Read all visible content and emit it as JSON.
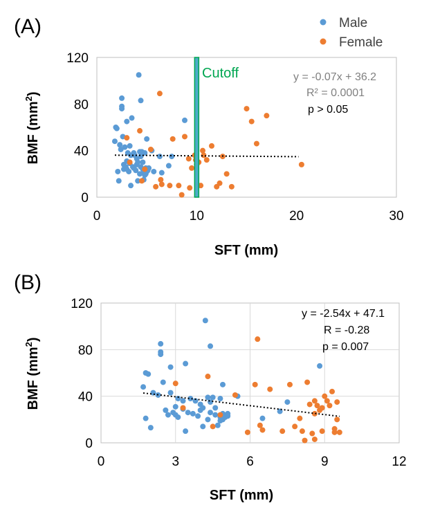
{
  "colors": {
    "male": "#5b9bd5",
    "female": "#ed7d31",
    "cutoff_fill": "#4bacc6",
    "cutoff_stroke": "#00a651",
    "cutoff_text": "#00a651",
    "grid": "#d9d9d9",
    "axis": "#bfbfbf",
    "trend": "#000000",
    "eq_gray": "#808080"
  },
  "legend": {
    "male": "Male",
    "female": "Female"
  },
  "chart_data": [
    {
      "panel": "(A)",
      "type": "scatter",
      "xlabel": "SFT (mm)",
      "ylabel": "BMF (mm",
      "ylabel_sup": "2",
      "ylabel_end": ")",
      "xlim": [
        0,
        30
      ],
      "ylim": [
        0,
        120
      ],
      "xticks": [
        0,
        10,
        20,
        30
      ],
      "yticks": [
        0,
        40,
        80,
        120
      ],
      "grid": false,
      "cutoff": {
        "x": 10,
        "label": "Cutoff"
      },
      "annotations": {
        "equation": "y = -0.07x + 36.2",
        "r_label": "R² = 0.0001",
        "p": "p > 0.05"
      },
      "trend": {
        "slope": -0.07,
        "intercept": 36.2,
        "x_range": [
          1.8,
          20.2
        ]
      },
      "series": [
        {
          "name": "Male",
          "points": [
            [
              1.8,
              48
            ],
            [
              1.9,
              60
            ],
            [
              2,
              59
            ],
            [
              2.1,
              22
            ],
            [
              2.2,
              14
            ],
            [
              2.3,
              45
            ],
            [
              2.4,
              41
            ],
            [
              2.5,
              85
            ],
            [
              2.5,
              78
            ],
            [
              2.5,
              76
            ],
            [
              2.6,
              52
            ],
            [
              2.7,
              28
            ],
            [
              2.7,
              24
            ],
            [
              2.8,
              43
            ],
            [
              2.9,
              26
            ],
            [
              3,
              31
            ],
            [
              3,
              24
            ],
            [
              3,
              65
            ],
            [
              3.1,
              38
            ],
            [
              3.2,
              22
            ],
            [
              3.3,
              44
            ],
            [
              3.3,
              29
            ],
            [
              3.4,
              36
            ],
            [
              3.4,
              10
            ],
            [
              3.5,
              68
            ],
            [
              3.6,
              26
            ],
            [
              3.7,
              38
            ],
            [
              3.7,
              25
            ],
            [
              3.8,
              36
            ],
            [
              3.9,
              23
            ],
            [
              4,
              33
            ],
            [
              4,
              28
            ],
            [
              4.1,
              30
            ],
            [
              4.1,
              14
            ],
            [
              4.2,
              105
            ],
            [
              4.3,
              39
            ],
            [
              4.3,
              20
            ],
            [
              4.4,
              35
            ],
            [
              4.4,
              26
            ],
            [
              4.4,
              83
            ],
            [
              4.5,
              39
            ],
            [
              4.6,
              30
            ],
            [
              4.6,
              24
            ],
            [
              4.7,
              15
            ],
            [
              4.7,
              22
            ],
            [
              4.8,
              19
            ],
            [
              4.8,
              38
            ],
            [
              4.9,
              20
            ],
            [
              4.9,
              25
            ],
            [
              5,
              22
            ],
            [
              5,
              50
            ],
            [
              5.1,
              23
            ],
            [
              5.2,
              25
            ],
            [
              5.5,
              40
            ],
            [
              5.7,
              22
            ],
            [
              6.3,
              35
            ],
            [
              6.5,
              21
            ],
            [
              7.2,
              27
            ],
            [
              7.5,
              35
            ],
            [
              8.8,
              66
            ]
          ]
        },
        {
          "name": "Female",
          "points": [
            [
              3,
              51
            ],
            [
              3.3,
              30
            ],
            [
              4.3,
              57
            ],
            [
              4.5,
              14
            ],
            [
              4.8,
              24
            ],
            [
              5.4,
              41
            ],
            [
              5.9,
              9
            ],
            [
              6.3,
              89
            ],
            [
              6.4,
              15
            ],
            [
              6.5,
              11
            ],
            [
              7.3,
              10
            ],
            [
              7.6,
              50
            ],
            [
              8.2,
              10
            ],
            [
              8.5,
              2
            ],
            [
              8.8,
              52
            ],
            [
              9.2,
              33
            ],
            [
              9.3,
              8
            ],
            [
              9.5,
              25
            ],
            [
              9.8,
              36
            ],
            [
              9.9,
              32
            ],
            [
              10,
              28
            ],
            [
              10.2,
              30
            ],
            [
              10.4,
              10
            ],
            [
              10.6,
              40
            ],
            [
              10.7,
              36
            ],
            [
              11,
              32
            ],
            [
              11.5,
              44
            ],
            [
              12,
              9
            ],
            [
              12.3,
              12
            ],
            [
              12.6,
              35
            ],
            [
              13,
              20
            ],
            [
              13.5,
              9
            ],
            [
              15,
              76
            ],
            [
              15.5,
              65
            ],
            [
              16,
              46
            ],
            [
              17,
              70
            ],
            [
              20.5,
              28
            ]
          ]
        }
      ]
    },
    {
      "panel": "(B)",
      "type": "scatter",
      "xlabel": "SFT (mm)",
      "ylabel": "BMF (mm",
      "ylabel_sup": "2",
      "ylabel_end": ")",
      "xlim": [
        0,
        12
      ],
      "ylim": [
        0,
        120
      ],
      "xticks": [
        0,
        3,
        6,
        9,
        12
      ],
      "yticks": [
        0,
        40,
        80,
        120
      ],
      "grid": true,
      "annotations": {
        "equation": "y = -2.54x + 47.1",
        "r_label": "R = -0.28",
        "p": "p = 0.007"
      },
      "trend": {
        "slope": -2.54,
        "intercept": 47.1,
        "x_range": [
          1.7,
          9.6
        ]
      },
      "series": [
        {
          "name": "Male",
          "points": [
            [
              1.7,
              48
            ],
            [
              1.8,
              60
            ],
            [
              1.8,
              21
            ],
            [
              1.9,
              59
            ],
            [
              2,
              13
            ],
            [
              2.1,
              43
            ],
            [
              2.3,
              41
            ],
            [
              2.4,
              85
            ],
            [
              2.4,
              78
            ],
            [
              2.4,
              76
            ],
            [
              2.5,
              52
            ],
            [
              2.6,
              28
            ],
            [
              2.7,
              24
            ],
            [
              2.8,
              43
            ],
            [
              2.8,
              65
            ],
            [
              2.9,
              26
            ],
            [
              3,
              31
            ],
            [
              3,
              24
            ],
            [
              3.1,
              38
            ],
            [
              3.1,
              22
            ],
            [
              3.3,
              29
            ],
            [
              3.3,
              36
            ],
            [
              3.4,
              10
            ],
            [
              3.4,
              68
            ],
            [
              3.5,
              26
            ],
            [
              3.6,
              38
            ],
            [
              3.7,
              25
            ],
            [
              3.8,
              36
            ],
            [
              3.9,
              23
            ],
            [
              4,
              33
            ],
            [
              4,
              28
            ],
            [
              4.1,
              30
            ],
            [
              4.1,
              14
            ],
            [
              4.2,
              105
            ],
            [
              4.3,
              39
            ],
            [
              4.3,
              20
            ],
            [
              4.4,
              35
            ],
            [
              4.4,
              26
            ],
            [
              4.4,
              83
            ],
            [
              4.5,
              39
            ],
            [
              4.6,
              30
            ],
            [
              4.6,
              24
            ],
            [
              4.7,
              15
            ],
            [
              4.8,
              22
            ],
            [
              4.8,
              19
            ],
            [
              4.8,
              38
            ],
            [
              4.9,
              20
            ],
            [
              4.9,
              25
            ],
            [
              5,
              22
            ],
            [
              4.9,
              50
            ],
            [
              5.1,
              23
            ],
            [
              5.1,
              25
            ],
            [
              5.5,
              40
            ],
            [
              6.5,
              21
            ],
            [
              7.2,
              27
            ],
            [
              7.5,
              35
            ],
            [
              8.8,
              66
            ]
          ]
        },
        {
          "name": "Female",
          "points": [
            [
              3,
              51
            ],
            [
              3.3,
              30
            ],
            [
              4.3,
              57
            ],
            [
              4.5,
              14
            ],
            [
              4.8,
              24
            ],
            [
              5.4,
              41
            ],
            [
              5.9,
              9
            ],
            [
              6.3,
              89
            ],
            [
              6.4,
              15
            ],
            [
              6.5,
              11
            ],
            [
              7.3,
              10
            ],
            [
              7.6,
              50
            ],
            [
              8.0,
              21
            ],
            [
              8.1,
              10
            ],
            [
              8.2,
              2
            ],
            [
              8.3,
              52
            ],
            [
              8.4,
              33
            ],
            [
              8.5,
              8
            ],
            [
              8.6,
              25
            ],
            [
              8.6,
              36
            ],
            [
              8.7,
              32
            ],
            [
              8.8,
              28
            ],
            [
              8.9,
              30
            ],
            [
              8.9,
              10
            ],
            [
              9,
              40
            ],
            [
              9.1,
              36
            ],
            [
              9.2,
              32
            ],
            [
              9.3,
              44
            ],
            [
              9.4,
              9
            ],
            [
              9.4,
              12
            ],
            [
              9.5,
              35
            ],
            [
              9.5,
              20
            ],
            [
              9.6,
              9
            ],
            [
              6.8,
              46
            ],
            [
              6.2,
              50
            ],
            [
              7.8,
              14
            ],
            [
              8.6,
              3
            ]
          ]
        }
      ]
    }
  ]
}
